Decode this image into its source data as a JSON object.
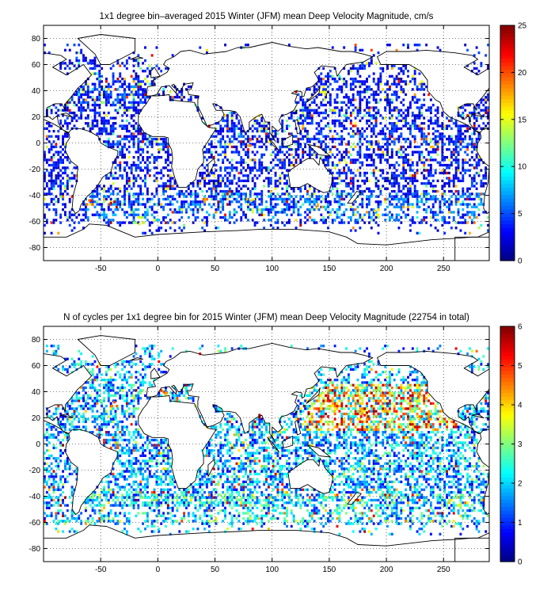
{
  "chart_data": [
    {
      "type": "heatmap",
      "title": "1x1 degree bin–averaged 2015 Winter (JFM) mean Deep Velocity Magnitude, cm/s",
      "xlabel": "",
      "ylabel": "",
      "xlim": [
        -100,
        290
      ],
      "ylim": [
        -90,
        90
      ],
      "xticks": [
        -50,
        0,
        50,
        100,
        150,
        200,
        250
      ],
      "yticks": [
        80,
        60,
        40,
        20,
        0,
        -20,
        -40,
        -60,
        -80
      ],
      "grid": "dotted",
      "colorbar": {
        "min": 0,
        "max": 25,
        "ticks": [
          0,
          5,
          10,
          15,
          20,
          25
        ],
        "colormap": "jet",
        "placement": "right"
      },
      "typical_value": 3,
      "bands": [
        {
          "lat": [
            30,
            45
          ],
          "lon": [
            -70,
            -10
          ],
          "level": 1.3
        },
        {
          "lat": [
            -60,
            -40
          ],
          "lon": [
            -65,
            290
          ],
          "level": 1.5
        },
        {
          "lat": [
            -5,
            5
          ],
          "lon": [
            -40,
            280
          ],
          "level": 1.2
        }
      ],
      "hotspots": [
        {
          "lon": -60,
          "lat": -45,
          "value": 22
        },
        {
          "lon": -40,
          "lat": -48,
          "value": 24
        },
        {
          "lon": 40,
          "lat": -45,
          "value": 20
        },
        {
          "lon": 80,
          "lat": -45,
          "value": 18
        },
        {
          "lon": 140,
          "lat": -48,
          "value": 19
        },
        {
          "lon": 190,
          "lat": -55,
          "value": 17
        },
        {
          "lon": 80,
          "lat": 0,
          "value": 21
        },
        {
          "lon": 145,
          "lat": 35,
          "value": 16
        },
        {
          "lon": -15,
          "lat": -60,
          "value": 15
        }
      ]
    },
    {
      "type": "heatmap",
      "title": "N of cycles per 1x1 degree bin for 2015 Winter (JFM) mean Deep Velocity Magnitude (22754 in total)",
      "xlabel": "",
      "ylabel": "",
      "xlim": [
        -100,
        290
      ],
      "ylim": [
        -90,
        90
      ],
      "xticks": [
        -50,
        0,
        50,
        100,
        150,
        200,
        250
      ],
      "yticks": [
        80,
        60,
        40,
        20,
        0,
        -20,
        -40,
        -60,
        -80
      ],
      "grid": "dotted",
      "colorbar": {
        "min": 0,
        "max": 6,
        "ticks": [
          0,
          1,
          2,
          3,
          4,
          5,
          6
        ],
        "colormap": "jet",
        "placement": "right"
      },
      "total_cycles": 22754,
      "typical_value": 1.5,
      "bands": [
        {
          "lat": [
            10,
            45
          ],
          "lon": [
            130,
            260
          ],
          "level": 2.2
        },
        {
          "lat": [
            -60,
            -40
          ],
          "lon": [
            -65,
            290
          ],
          "level": 1.2
        }
      ],
      "hotspots": [
        {
          "lon": 128,
          "lat": 25,
          "value": 6
        },
        {
          "lon": 85,
          "lat": 18,
          "value": 6
        },
        {
          "lon": 5,
          "lat": 40,
          "value": 5
        },
        {
          "lon": -40,
          "lat": 28,
          "value": 5
        },
        {
          "lon": 180,
          "lat": 20,
          "value": 6
        },
        {
          "lon": 230,
          "lat": 35,
          "value": 5
        }
      ]
    }
  ]
}
